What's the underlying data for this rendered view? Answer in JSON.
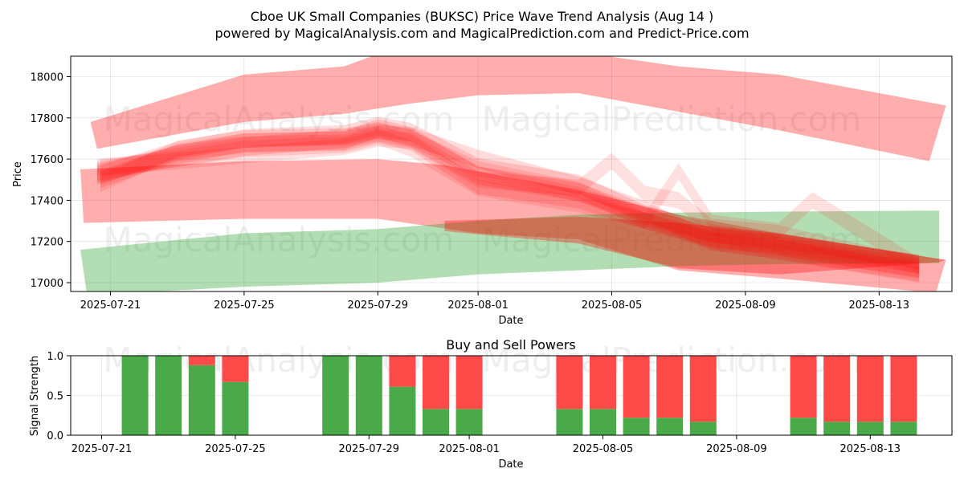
{
  "chart_data": [
    {
      "type": "area",
      "title": "Cboe UK Small Companies (BUKSC) Price Wave Trend Analysis (Aug 14 )",
      "subtitle": "powered by MagicalAnalysis.com and MagicalPrediction.com and Predict-Price.com",
      "xlabel": "Date",
      "ylabel": "Price",
      "x_ticks": [
        "2025-07-21",
        "2025-07-25",
        "2025-07-29",
        "2025-08-01",
        "2025-08-05",
        "2025-08-09",
        "2025-08-13"
      ],
      "y_ticks": [
        "17000",
        "17200",
        "17400",
        "17600",
        "17800",
        "18000"
      ],
      "xlim": [
        "2025-07-20",
        "2025-08-15"
      ],
      "ylim": [
        16960,
        18100
      ],
      "grid": true,
      "watermarks": [
        "MagicalAnalysis.com",
        "MagicalPrediction.com",
        "MagicalAnalysis.com",
        "MagicalPrediction.com"
      ],
      "colors": {
        "bearish": "#ff0000",
        "bullish": "#2ca02c"
      },
      "bands": [
        {
          "name": "upper-red-band",
          "color": "#ff0000",
          "opacity": 0.32,
          "upper": [
            [
              -0.6,
              17780
            ],
            [
              4,
              18010
            ],
            [
              7,
              18050
            ],
            [
              8,
              18110
            ],
            [
              11,
              18140
            ],
            [
              14,
              18120
            ],
            [
              17,
              18050
            ],
            [
              20,
              18010
            ],
            [
              25,
              17860
            ]
          ],
          "lower": [
            [
              -0.4,
              17650
            ],
            [
              4,
              17780
            ],
            [
              7,
              17820
            ],
            [
              9,
              17870
            ],
            [
              11,
              17910
            ],
            [
              14,
              17920
            ],
            [
              17,
              17830
            ],
            [
              20,
              17740
            ],
            [
              24.5,
              17590
            ]
          ]
        },
        {
          "name": "middle-red-band",
          "color": "#ff0000",
          "opacity": 0.32,
          "upper": [
            [
              -0.9,
              17550
            ],
            [
              4,
              17590
            ],
            [
              8,
              17600
            ],
            [
              10,
              17570
            ],
            [
              14,
              17450
            ],
            [
              17,
              17330
            ],
            [
              20,
              17240
            ],
            [
              25,
              17110
            ]
          ],
          "lower": [
            [
              -0.8,
              17290
            ],
            [
              4,
              17310
            ],
            [
              8,
              17310
            ],
            [
              11,
              17240
            ],
            [
              14,
              17210
            ],
            [
              17,
              17060
            ],
            [
              20,
              17020
            ],
            [
              24.7,
              16950
            ]
          ]
        },
        {
          "name": "green-band",
          "color": "#2ca02c",
          "opacity": 0.36,
          "upper": [
            [
              -0.9,
              17160
            ],
            [
              4,
              17240
            ],
            [
              8,
              17260
            ],
            [
              11,
              17300
            ],
            [
              14,
              17330
            ],
            [
              17,
              17340
            ],
            [
              20,
              17345
            ],
            [
              24.8,
              17350
            ]
          ],
          "lower": [
            [
              -0.7,
              16940
            ],
            [
              4,
              16980
            ],
            [
              8,
              17000
            ],
            [
              11,
              17040
            ],
            [
              14,
              17060
            ],
            [
              17,
              17080
            ],
            [
              20,
              17090
            ],
            [
              24.8,
              17095
            ]
          ]
        },
        {
          "name": "lower-red-band",
          "color": "#ff0000",
          "opacity": 0.32,
          "upper": [
            [
              10,
              17300
            ],
            [
              14,
              17320
            ],
            [
              17,
              17290
            ],
            [
              20,
              17240
            ],
            [
              25,
              17110
            ]
          ],
          "lower": [
            [
              10,
              17250
            ],
            [
              14,
              17190
            ],
            [
              17,
              17070
            ],
            [
              20,
              17040
            ],
            [
              24.8,
              17100
            ]
          ]
        }
      ],
      "wave_bands": [
        {
          "name": "wave-1",
          "opacity": 0.14,
          "half_width": 45,
          "points": [
            [
              -0.4,
              17520
            ],
            [
              2,
              17640
            ],
            [
              4,
              17700
            ],
            [
              7,
              17720
            ],
            [
              8,
              17760
            ],
            [
              9,
              17730
            ],
            [
              11,
              17560
            ],
            [
              14,
              17480
            ],
            [
              16,
              17330
            ],
            [
              18,
              17240
            ],
            [
              20,
              17190
            ],
            [
              24.2,
              17090
            ]
          ]
        },
        {
          "name": "wave-2",
          "opacity": 0.14,
          "half_width": 45,
          "points": [
            [
              -0.4,
              17540
            ],
            [
              2,
              17610
            ],
            [
              4,
              17660
            ],
            [
              7,
              17700
            ],
            [
              8,
              17730
            ],
            [
              9,
              17700
            ],
            [
              11,
              17520
            ],
            [
              14,
              17440
            ],
            [
              16,
              17320
            ],
            [
              18,
              17220
            ],
            [
              20,
              17180
            ],
            [
              24.2,
              17070
            ]
          ]
        },
        {
          "name": "wave-3",
          "opacity": 0.14,
          "half_width": 40,
          "points": [
            [
              -0.3,
              17500
            ],
            [
              2,
              17630
            ],
            [
              4,
              17670
            ],
            [
              7,
              17680
            ],
            [
              8,
              17720
            ],
            [
              9,
              17680
            ],
            [
              11,
              17470
            ],
            [
              14,
              17400
            ],
            [
              16,
              17300
            ],
            [
              18,
              17210
            ],
            [
              20,
              17170
            ],
            [
              24.2,
              17060
            ]
          ]
        },
        {
          "name": "wave-4",
          "opacity": 0.12,
          "half_width": 40,
          "points": [
            [
              -0.3,
              17560
            ],
            [
              2,
              17590
            ],
            [
              4,
              17620
            ],
            [
              7,
              17660
            ],
            [
              8,
              17700
            ],
            [
              9,
              17690
            ],
            [
              11,
              17500
            ],
            [
              14,
              17460
            ],
            [
              15,
              17590
            ],
            [
              16,
              17430
            ],
            [
              17,
              17400
            ],
            [
              18,
              17270
            ],
            [
              20,
              17240
            ],
            [
              24.2,
              17080
            ]
          ]
        },
        {
          "name": "wave-5",
          "opacity": 0.12,
          "half_width": 40,
          "points": [
            [
              -0.3,
              17480
            ],
            [
              2,
              17650
            ],
            [
              4,
              17700
            ],
            [
              7,
              17710
            ],
            [
              8,
              17740
            ],
            [
              9,
              17700
            ],
            [
              11,
              17550
            ],
            [
              14,
              17450
            ],
            [
              16,
              17300
            ],
            [
              17,
              17540
            ],
            [
              18,
              17290
            ],
            [
              20,
              17250
            ],
            [
              21,
              17400
            ],
            [
              24.2,
              17080
            ]
          ]
        },
        {
          "name": "wave-6",
          "opacity": 0.14,
          "half_width": 45,
          "points": [
            [
              -0.4,
              17530
            ],
            [
              2,
              17620
            ],
            [
              4,
              17680
            ],
            [
              7,
              17690
            ],
            [
              8,
              17750
            ],
            [
              9,
              17710
            ],
            [
              11,
              17600
            ],
            [
              14,
              17470
            ],
            [
              16,
              17350
            ],
            [
              18,
              17200
            ],
            [
              20,
              17160
            ],
            [
              24.2,
              17050
            ]
          ]
        },
        {
          "name": "wave-7",
          "opacity": 0.12,
          "half_width": 40,
          "points": [
            [
              -0.4,
              17560
            ],
            [
              2,
              17600
            ],
            [
              4,
              17650
            ],
            [
              7,
              17670
            ],
            [
              8,
              17710
            ],
            [
              9,
              17650
            ],
            [
              11,
              17460
            ],
            [
              14,
              17380
            ],
            [
              16,
              17300
            ],
            [
              18,
              17200
            ],
            [
              20,
              17150
            ],
            [
              24.2,
              17040
            ]
          ]
        },
        {
          "name": "wave-8",
          "opacity": 0.12,
          "half_width": 35,
          "points": [
            [
              -0.3,
              17510
            ],
            [
              2,
              17640
            ],
            [
              4,
              17690
            ],
            [
              7,
              17700
            ],
            [
              8,
              17730
            ],
            [
              9,
              17720
            ],
            [
              11,
              17530
            ],
            [
              14,
              17430
            ],
            [
              16,
              17330
            ],
            [
              18,
              17230
            ],
            [
              20,
              17200
            ],
            [
              24.2,
              17100
            ]
          ]
        }
      ]
    },
    {
      "type": "bar",
      "title": "Buy and Sell Powers",
      "xlabel": "Date",
      "ylabel": "Signal Strength",
      "x_ticks": [
        "2025-07-21",
        "2025-07-25",
        "2025-07-29",
        "2025-08-01",
        "2025-08-05",
        "2025-08-09",
        "2025-08-13"
      ],
      "y_ticks": [
        "0.0",
        "0.5",
        "1.0"
      ],
      "ylim": [
        0,
        1
      ],
      "colors": {
        "buy": "#4aaa4a",
        "sell": "#ff4a4a"
      },
      "series": [
        {
          "name": "buy",
          "color": "#4aaa4a"
        },
        {
          "name": "sell",
          "color": "#ff4a4a"
        }
      ],
      "bars": [
        {
          "date": "2025-07-22",
          "buy": 1.0,
          "sell": 0.0
        },
        {
          "date": "2025-07-23",
          "buy": 1.0,
          "sell": 0.0
        },
        {
          "date": "2025-07-24",
          "buy": 0.88,
          "sell": 0.12
        },
        {
          "date": "2025-07-25",
          "buy": 0.67,
          "sell": 0.33
        },
        {
          "date": "2025-07-28",
          "buy": 1.0,
          "sell": 0.0
        },
        {
          "date": "2025-07-29",
          "buy": 1.0,
          "sell": 0.0
        },
        {
          "date": "2025-07-30",
          "buy": 0.61,
          "sell": 0.39
        },
        {
          "date": "2025-07-31",
          "buy": 0.33,
          "sell": 0.67
        },
        {
          "date": "2025-08-01",
          "buy": 0.33,
          "sell": 0.67
        },
        {
          "date": "2025-08-04",
          "buy": 0.33,
          "sell": 0.67
        },
        {
          "date": "2025-08-05",
          "buy": 0.33,
          "sell": 0.67
        },
        {
          "date": "2025-08-06",
          "buy": 0.22,
          "sell": 0.78
        },
        {
          "date": "2025-08-07",
          "buy": 0.22,
          "sell": 0.78
        },
        {
          "date": "2025-08-08",
          "buy": 0.17,
          "sell": 0.83
        },
        {
          "date": "2025-08-11",
          "buy": 0.22,
          "sell": 0.78
        },
        {
          "date": "2025-08-12",
          "buy": 0.17,
          "sell": 0.83
        },
        {
          "date": "2025-08-13",
          "buy": 0.17,
          "sell": 0.83
        },
        {
          "date": "2025-08-14",
          "buy": 0.17,
          "sell": 0.83
        }
      ],
      "watermarks": [
        "MagicalAnalysis.com",
        "MagicalPrediction.com"
      ]
    }
  ]
}
